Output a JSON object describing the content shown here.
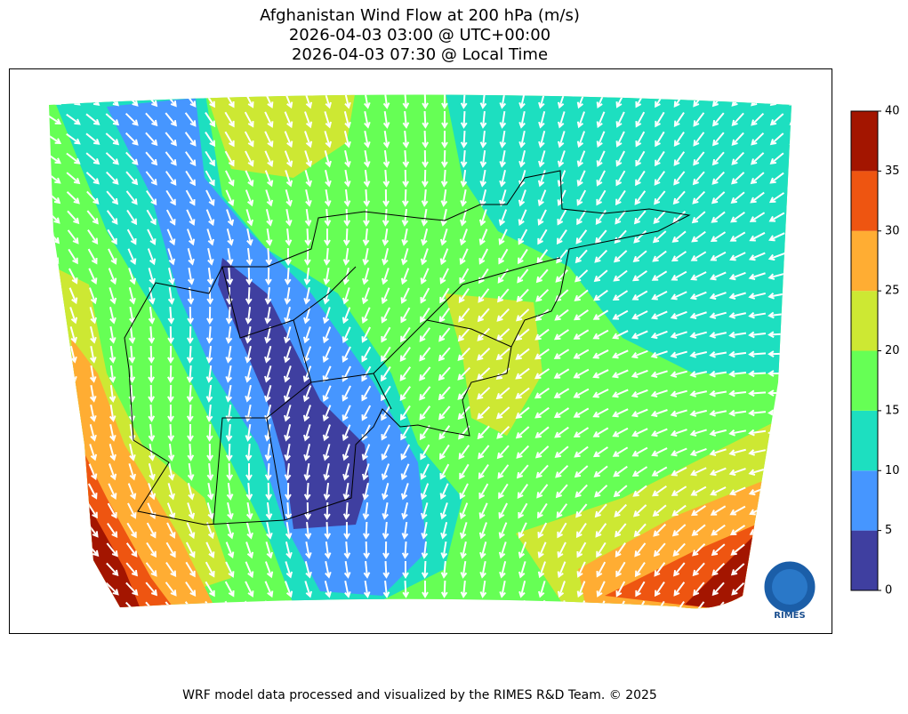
{
  "title": [
    "Afghanistan Wind Flow at 200 hPa (m/s)",
    "2026-04-03 03:00 @ UTC+00:00",
    "2026-04-03 07:30 @ Local Time"
  ],
  "colorbar": {
    "lim": [
      0,
      40
    ],
    "ticks": [
      0,
      5,
      10,
      15,
      20,
      25,
      30,
      35,
      40
    ],
    "colors": [
      "#3f3fa0",
      "#4696ff",
      "#1ddfc0",
      "#66ff55",
      "#cde833",
      "#ffad33",
      "#ee5511",
      "#a31500"
    ]
  },
  "logo": {
    "label": "RIMES"
  },
  "footer": "WRF model data processed and visualized by the RIMES R&D Team. © 2025"
}
